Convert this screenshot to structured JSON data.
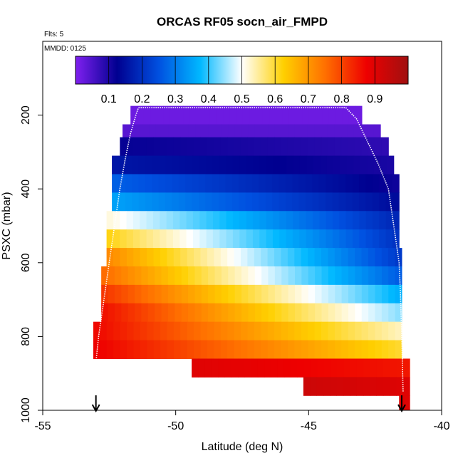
{
  "chart_data": {
    "type": "heatmap",
    "title": "ORCAS RF05 socn_air_FMPD",
    "flights_label": "Flts: 5",
    "date_label": "MMDD: 0125",
    "xlabel": "Latitude (deg N)",
    "ylabel": "PSXC (mbar)",
    "xlim": [
      -55,
      -40
    ],
    "ylim": [
      1000,
      0
    ],
    "x_ticks": [
      -55,
      -50,
      -45,
      -40
    ],
    "y_ticks": [
      200,
      400,
      600,
      800,
      1000
    ],
    "colorbar": {
      "min": 0.0,
      "max": 1.0,
      "ticks": [
        0.1,
        0.2,
        0.3,
        0.4,
        0.5,
        0.6,
        0.7,
        0.8,
        0.9
      ],
      "colors": [
        "#8020f0",
        "#000090",
        "#0050e0",
        "#00b8ff",
        "#ffffff",
        "#ffd000",
        "#ff7000",
        "#ee0000",
        "#a01010"
      ]
    },
    "layers": [
      {
        "p_top": 175,
        "p_bot": 225,
        "lat_min": -51.7,
        "lat_max": -43.0,
        "v_south": 0.02,
        "v_north": 0.02
      },
      {
        "p_top": 225,
        "p_bot": 260,
        "lat_min": -52.0,
        "lat_max": -42.3,
        "v_south": 0.04,
        "v_north": 0.04
      },
      {
        "p_top": 260,
        "p_bot": 310,
        "lat_min": -52.1,
        "lat_max": -42.0,
        "v_south": 0.12,
        "v_north": 0.08
      },
      {
        "p_top": 310,
        "p_bot": 360,
        "lat_min": -52.4,
        "lat_max": -41.8,
        "v_south": 0.16,
        "v_north": 0.1
      },
      {
        "p_top": 360,
        "p_bot": 410,
        "lat_min": -52.4,
        "lat_max": -41.6,
        "v_south": 0.27,
        "v_north": 0.11
      },
      {
        "p_top": 410,
        "p_bot": 460,
        "lat_min": -52.4,
        "lat_max": -41.6,
        "v_south": 0.35,
        "v_north": 0.14
      },
      {
        "p_top": 460,
        "p_bot": 510,
        "lat_min": -52.6,
        "lat_max": -41.6,
        "v_south": 0.52,
        "v_north": 0.18
      },
      {
        "p_top": 510,
        "p_bot": 560,
        "lat_min": -52.6,
        "lat_max": -41.6,
        "v_south": 0.62,
        "v_north": 0.2
      },
      {
        "p_top": 560,
        "p_bot": 610,
        "lat_min": -52.6,
        "lat_max": -41.5,
        "v_south": 0.72,
        "v_north": 0.21
      },
      {
        "p_top": 610,
        "p_bot": 660,
        "lat_min": -52.8,
        "lat_max": -41.5,
        "v_south": 0.76,
        "v_north": 0.26
      },
      {
        "p_top": 660,
        "p_bot": 710,
        "lat_min": -52.8,
        "lat_max": -41.5,
        "v_south": 0.82,
        "v_north": 0.36
      },
      {
        "p_top": 710,
        "p_bot": 760,
        "lat_min": -52.8,
        "lat_max": -41.5,
        "v_south": 0.86,
        "v_north": 0.44
      },
      {
        "p_top": 760,
        "p_bot": 810,
        "lat_min": -53.1,
        "lat_max": -41.5,
        "v_south": 0.87,
        "v_north": 0.53
      },
      {
        "p_top": 810,
        "p_bot": 860,
        "lat_min": -53.1,
        "lat_max": -41.5,
        "v_south": 0.88,
        "v_north": 0.6
      },
      {
        "p_top": 860,
        "p_bot": 910,
        "lat_min": -49.4,
        "lat_max": -41.2,
        "v_south": 0.9,
        "v_north": 0.85
      },
      {
        "p_top": 910,
        "p_bot": 960,
        "lat_min": -45.2,
        "lat_max": -41.2,
        "v_south": 0.93,
        "v_north": 0.9
      },
      {
        "p_top": 960,
        "p_bot": 1000,
        "lat_min": -41.6,
        "lat_max": -41.2,
        "v_south": 0.9,
        "v_north": 0.9
      }
    ],
    "flight_track": [
      [
        -53.0,
        870
      ],
      [
        -52.9,
        800
      ],
      [
        -52.7,
        700
      ],
      [
        -52.5,
        600
      ],
      [
        -52.3,
        500
      ],
      [
        -52.1,
        400
      ],
      [
        -51.9,
        320
      ],
      [
        -51.7,
        250
      ],
      [
        -51.5,
        200
      ],
      [
        -51.4,
        180
      ],
      [
        -43.6,
        180
      ],
      [
        -43.2,
        210
      ],
      [
        -42.8,
        270
      ],
      [
        -42.4,
        330
      ],
      [
        -42.0,
        400
      ],
      [
        -41.8,
        500
      ],
      [
        -41.6,
        600
      ],
      [
        -41.55,
        680
      ],
      [
        -41.5,
        800
      ],
      [
        -41.45,
        950
      ]
    ],
    "arrows": [
      -53.0,
      -41.5
    ]
  }
}
